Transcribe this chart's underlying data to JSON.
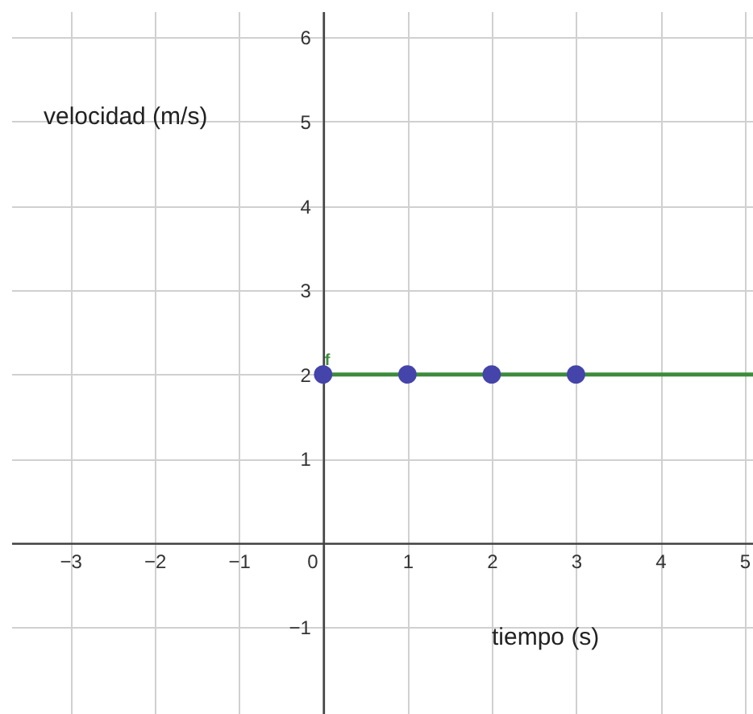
{
  "chart_data": {
    "type": "scatter",
    "xlabel": "tiempo (s)",
    "ylabel": "velocidad (m/s)",
    "xlim": [
      -3.7,
      5.1
    ],
    "ylim": [
      -2.03,
      6.31
    ],
    "xticks": [
      {
        "value": -3,
        "label": "−3"
      },
      {
        "value": -2,
        "label": "−2"
      },
      {
        "value": -1,
        "label": "−1"
      },
      0,
      1,
      2,
      3,
      4,
      5
    ],
    "yticks": [
      {
        "value": -1,
        "label": "−1"
      },
      1,
      2,
      3,
      4,
      5,
      6
    ],
    "grid": true,
    "marker": "circle",
    "series": [
      {
        "name": "f",
        "type": "line",
        "marker": "none",
        "color": "#3d8b3d",
        "x": [
          0,
          5.1
        ],
        "values": [
          2,
          2
        ]
      },
      {
        "color": "#4444aa",
        "x": [
          0,
          1,
          2,
          3
        ],
        "values": [
          2,
          2,
          2,
          2
        ]
      }
    ]
  }
}
